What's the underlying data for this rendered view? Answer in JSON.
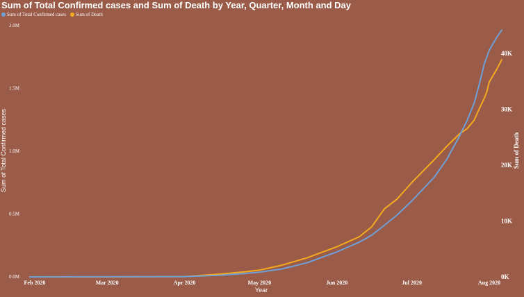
{
  "chart_data": {
    "type": "line",
    "title": "Sum of Total Confirmed cases and Sum of Death by Year, Quarter, Month and Day",
    "xlabel": "Year",
    "ylabel_left": "Sum of Total Confirmed cases",
    "ylabel_right": "Sum of Death",
    "x_ticks": [
      "Feb 2020",
      "Mar 2020",
      "Apr 2020",
      "May 2020",
      "Jun 2020",
      "Jul 2020",
      "Aug 2020"
    ],
    "y_left_ticks": [
      "0.0M",
      "0.5M",
      "1.0M",
      "1.5M",
      "2.0M"
    ],
    "y_right_ticks": [
      "0K",
      "10K",
      "20K",
      "30K",
      "40K"
    ],
    "ylim_left": [
      0,
      2000000
    ],
    "ylim_right": [
      0,
      45000
    ],
    "legend_position": "top-left",
    "grid": false,
    "x": [
      "2020-01-30",
      "2020-03-01",
      "2020-04-01",
      "2020-04-15",
      "2020-04-25",
      "2020-05-01",
      "2020-05-10",
      "2020-05-20",
      "2020-06-01",
      "2020-06-10",
      "2020-06-15",
      "2020-06-20",
      "2020-06-25",
      "2020-07-01",
      "2020-07-10",
      "2020-07-15",
      "2020-07-20",
      "2020-07-23",
      "2020-07-24",
      "2020-07-26",
      "2020-07-28",
      "2020-07-30",
      "2020-07-31",
      "2020-08-01",
      "2020-08-04",
      "2020-08-06"
    ],
    "series": [
      {
        "name": "Sum of Total Confirmed cases",
        "color": "#6fa0d8",
        "axis": "left",
        "values": [
          1,
          1600,
          1998,
          12400,
          26900,
          37300,
          62900,
          112400,
          198700,
          277000,
          333000,
          411000,
          491000,
          605000,
          794000,
          936000,
          1118000,
          1239000,
          1288000,
          1385000,
          1531000,
          1695000,
          1750000,
          1804000,
          1908000,
          1964000
        ]
      },
      {
        "name": "Sum of Death",
        "color": "#f5ab1e",
        "axis": "right",
        "values": [
          0,
          0,
          50,
          500,
          900,
          1200,
          2100,
          3400,
          5400,
          7200,
          9000,
          12200,
          13900,
          16900,
          21000,
          23400,
          25600,
          26500,
          27000,
          28100,
          30100,
          32000,
          33100,
          34900,
          37200,
          38900
        ]
      }
    ]
  }
}
